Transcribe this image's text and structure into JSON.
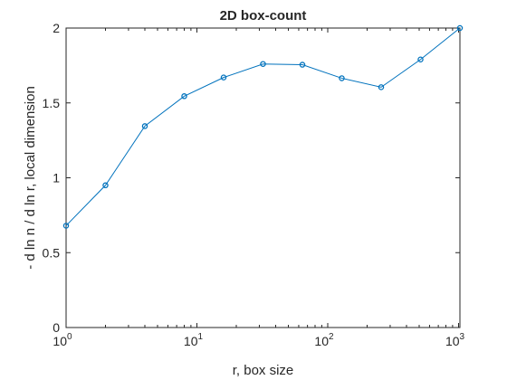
{
  "chart_data": {
    "type": "line",
    "title": "2D box-count",
    "xlabel": "r, box size",
    "ylabel": "- d ln n / d ln r, local dimension",
    "xscale": "log",
    "xlim": [
      1,
      1024
    ],
    "ylim": [
      0,
      2
    ],
    "grid": false,
    "x_ticks": [
      {
        "base": "10",
        "exp": "0",
        "value": 1
      },
      {
        "base": "10",
        "exp": "1",
        "value": 10
      },
      {
        "base": "10",
        "exp": "2",
        "value": 100
      },
      {
        "base": "10",
        "exp": "3",
        "value": 1000
      }
    ],
    "y_ticks": [
      {
        "label": "0",
        "value": 0
      },
      {
        "label": "0.5",
        "value": 0.5
      },
      {
        "label": "1",
        "value": 1
      },
      {
        "label": "1.5",
        "value": 1.5
      },
      {
        "label": "2",
        "value": 2
      }
    ],
    "series": [
      {
        "color": "#0072BD",
        "marker": "circle",
        "x": [
          1,
          2,
          4,
          8,
          16,
          32,
          64,
          128,
          256,
          512,
          1024
        ],
        "y": [
          0.68,
          0.95,
          1.345,
          1.545,
          1.67,
          1.76,
          1.755,
          1.665,
          1.605,
          1.79,
          2.0
        ]
      }
    ]
  }
}
